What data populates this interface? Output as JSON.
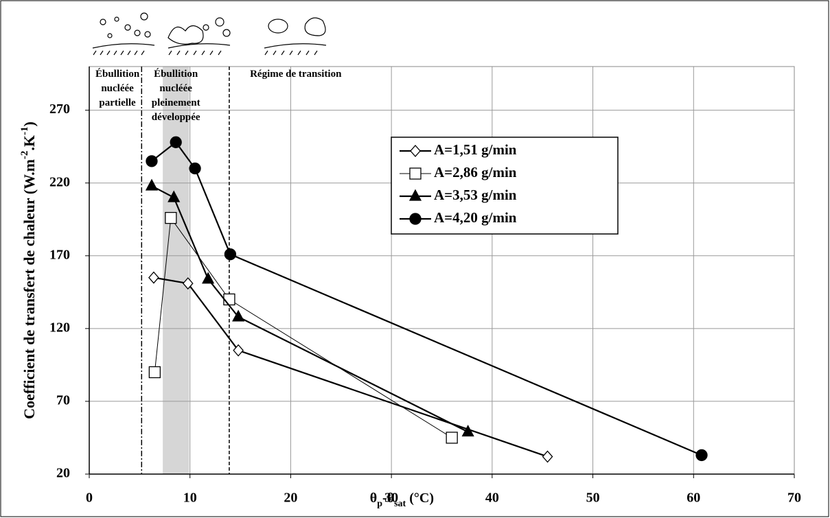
{
  "chart_data": {
    "type": "line",
    "x_label": [
      "θ",
      "p",
      "-θ",
      "sat",
      " (°C)"
    ],
    "y_label": [
      "Coefficient de transfert de chaleur (W.m",
      "-2",
      ".K",
      "-1",
      ")"
    ],
    "xlim": [
      0,
      70
    ],
    "xticks": [
      0,
      10,
      20,
      30,
      40,
      50,
      60,
      70
    ],
    "ylim": [
      20,
      300
    ],
    "yticks": [
      20,
      70,
      120,
      170,
      220,
      270
    ],
    "grid": true,
    "regions": [
      {
        "label": [
          "Ébullition",
          "nucléée",
          "partielle"
        ],
        "x": 2.8
      },
      {
        "label": [
          "Ébullition",
          "nucléée",
          "pleinement",
          "développée"
        ],
        "x": 8.6
      },
      {
        "label": [
          "Régime de transition"
        ],
        "x": 20.5
      }
    ],
    "boundaries": [
      {
        "x": 5.2,
        "style": "dashdot"
      },
      {
        "x": 13.9,
        "style": "dashed"
      }
    ],
    "shaded_band": [
      7.3,
      9.9
    ],
    "series": [
      {
        "name": "A=1,51 g/min",
        "marker": "diamond",
        "color": "#000000",
        "x": [
          6.4,
          9.8,
          14.8,
          45.5
        ],
        "values": [
          155,
          151,
          105,
          32
        ]
      },
      {
        "name": "A=2,86 g/min",
        "marker": "square",
        "color": "#000000",
        "x": [
          6.5,
          8.1,
          13.9,
          36
        ],
        "values": [
          90,
          196,
          140,
          45
        ]
      },
      {
        "name": "A=3,53 g/min",
        "marker": "triangle",
        "color": "#000000",
        "x": [
          6.2,
          8.4,
          11.8,
          14.8,
          37.6
        ],
        "values": [
          218,
          210,
          154,
          128,
          49
        ]
      },
      {
        "name": "A=4,20 g/min",
        "marker": "circle",
        "color": "#000000",
        "x": [
          6.2,
          8.6,
          10.5,
          14,
          60.8
        ],
        "values": [
          235,
          248,
          230,
          171,
          33
        ]
      }
    ]
  }
}
